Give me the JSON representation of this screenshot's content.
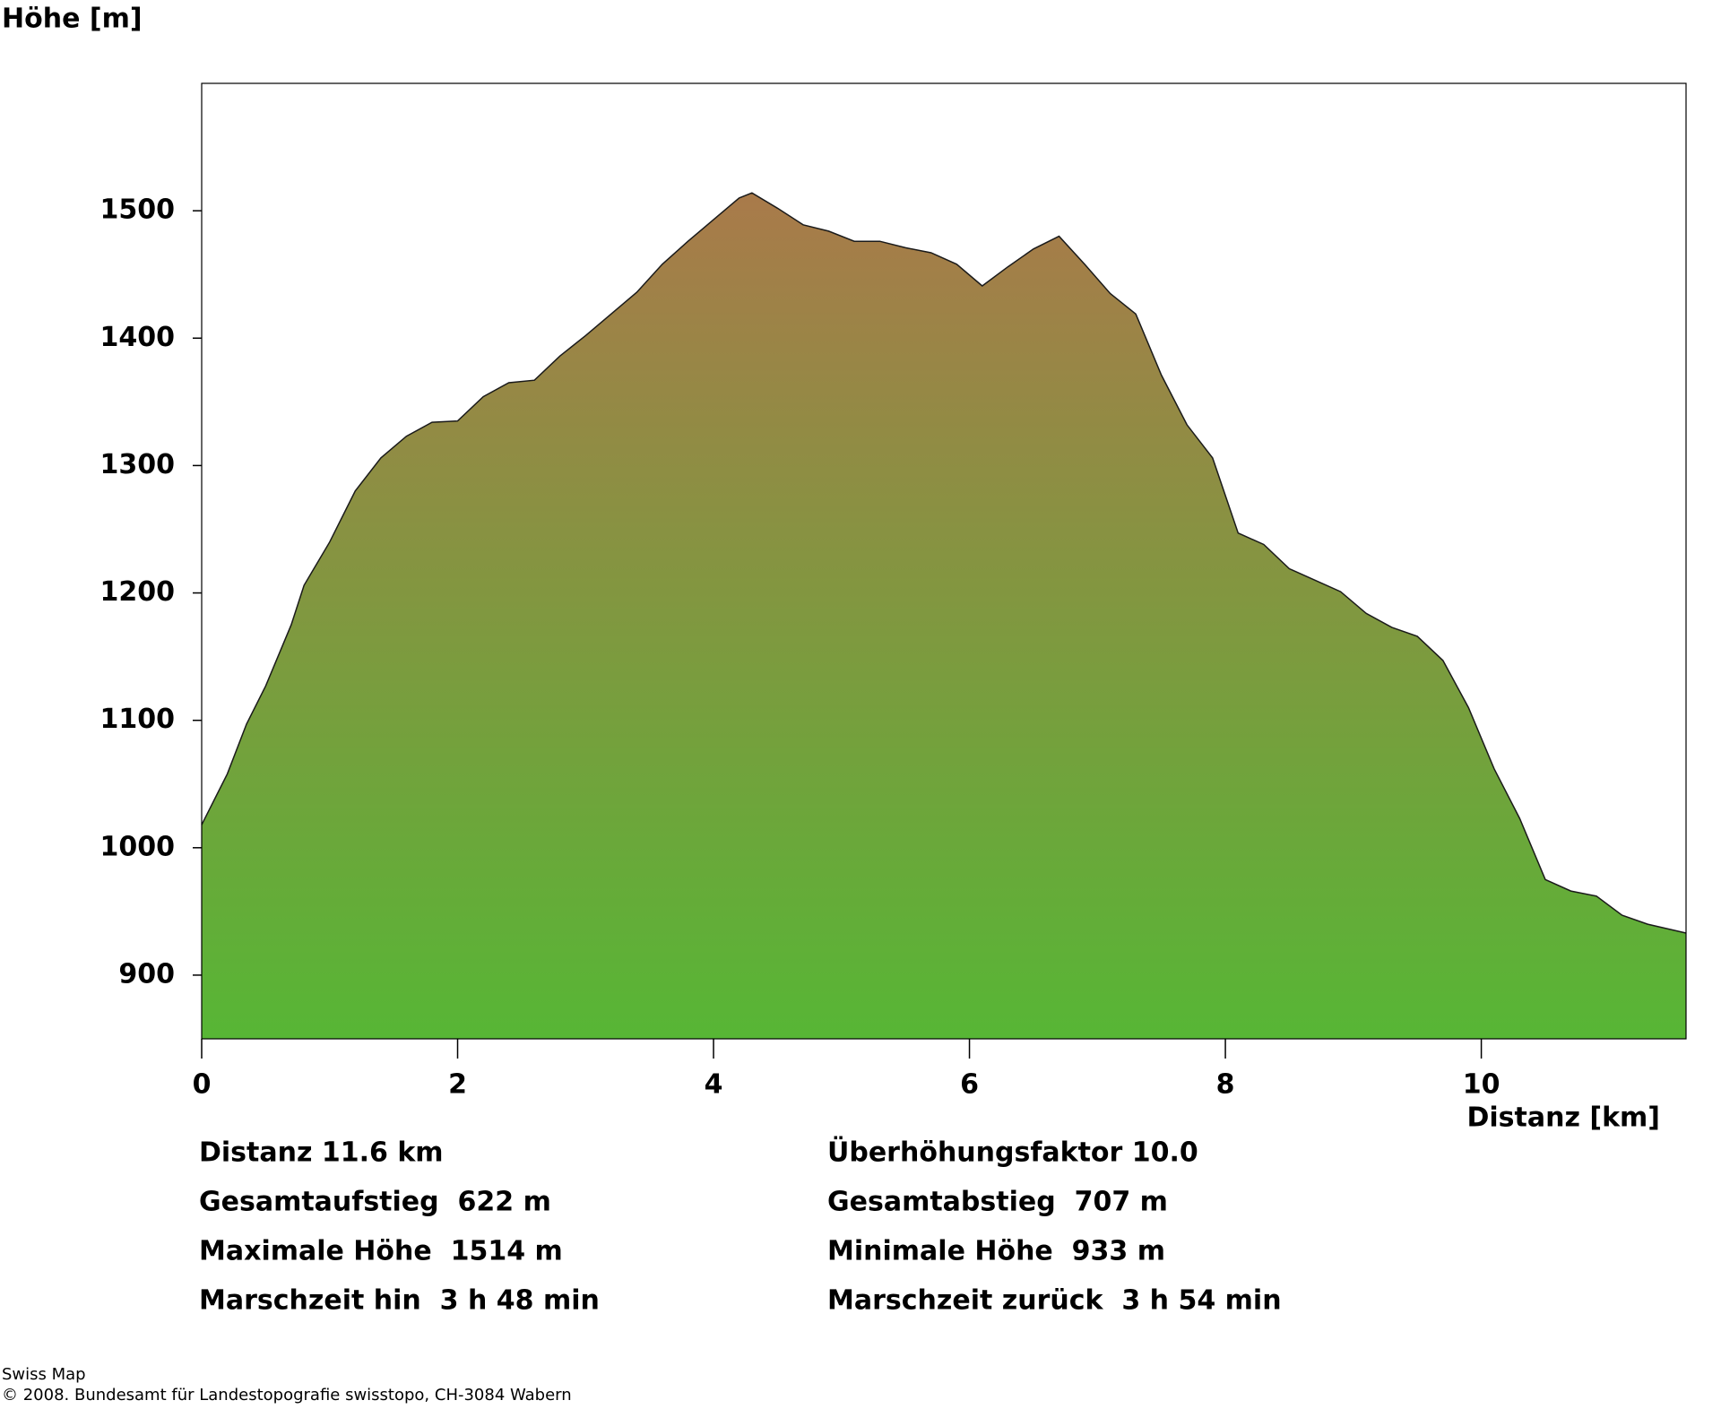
{
  "chart_data": {
    "type": "area",
    "y_label": "Höhe [m]",
    "x_label": "Distanz [km]",
    "x": [
      0,
      0.2,
      0.35,
      0.5,
      0.7,
      0.8,
      1.0,
      1.2,
      1.4,
      1.6,
      1.8,
      2.0,
      2.2,
      2.4,
      2.6,
      2.8,
      3.0,
      3.2,
      3.4,
      3.6,
      3.8,
      4.0,
      4.2,
      4.3,
      4.5,
      4.7,
      4.9,
      5.1,
      5.3,
      5.5,
      5.7,
      5.9,
      6.1,
      6.3,
      6.5,
      6.7,
      6.9,
      7.1,
      7.3,
      7.5,
      7.7,
      7.9,
      8.1,
      8.3,
      8.5,
      8.7,
      8.9,
      9.1,
      9.3,
      9.5,
      9.7,
      9.9,
      10.1,
      10.3,
      10.5,
      10.7,
      10.9,
      11.1,
      11.3,
      11.6
    ],
    "values": [
      1018,
      1058,
      1097,
      1127,
      1175,
      1206,
      1240,
      1280,
      1306,
      1323,
      1334,
      1335,
      1354,
      1365,
      1367,
      1386,
      1402,
      1419,
      1436,
      1458,
      1476,
      1493,
      1510,
      1514,
      1502,
      1489,
      1484,
      1476,
      1476,
      1471,
      1467,
      1458,
      1441,
      1456,
      1470,
      1480,
      1458,
      1435,
      1419,
      1371,
      1332,
      1306,
      1247,
      1238,
      1219,
      1210,
      1201,
      1184,
      1173,
      1166,
      1147,
      1110,
      1062,
      1023,
      975,
      966,
      962,
      947,
      940,
      933
    ],
    "xlim": [
      0,
      11.6
    ],
    "ylim": [
      850,
      1600
    ],
    "xticks": [
      0,
      2,
      4,
      6,
      8,
      10
    ],
    "yticks": [
      900,
      1000,
      1100,
      1200,
      1300,
      1400,
      1500
    ],
    "gradient": [
      "#a97a4a",
      "#57b635"
    ],
    "line_color": "#1a1a1a"
  },
  "stats": [
    [
      "Distanz 11.6 km",
      "Überhöhungsfaktor 10.0"
    ],
    [
      "Gesamtaufstieg  622 m",
      "Gesamtabstieg  707 m"
    ],
    [
      "Maximale Höhe  1514 m",
      "Minimale Höhe  933 m"
    ],
    [
      "Marschzeit hin  3 h 48 min",
      "Marschzeit zurück  3 h 54 min"
    ]
  ],
  "credits": [
    "Swiss Map",
    "© 2008. Bundesamt für Landestopografie swisstopo, CH-3084 Wabern"
  ]
}
